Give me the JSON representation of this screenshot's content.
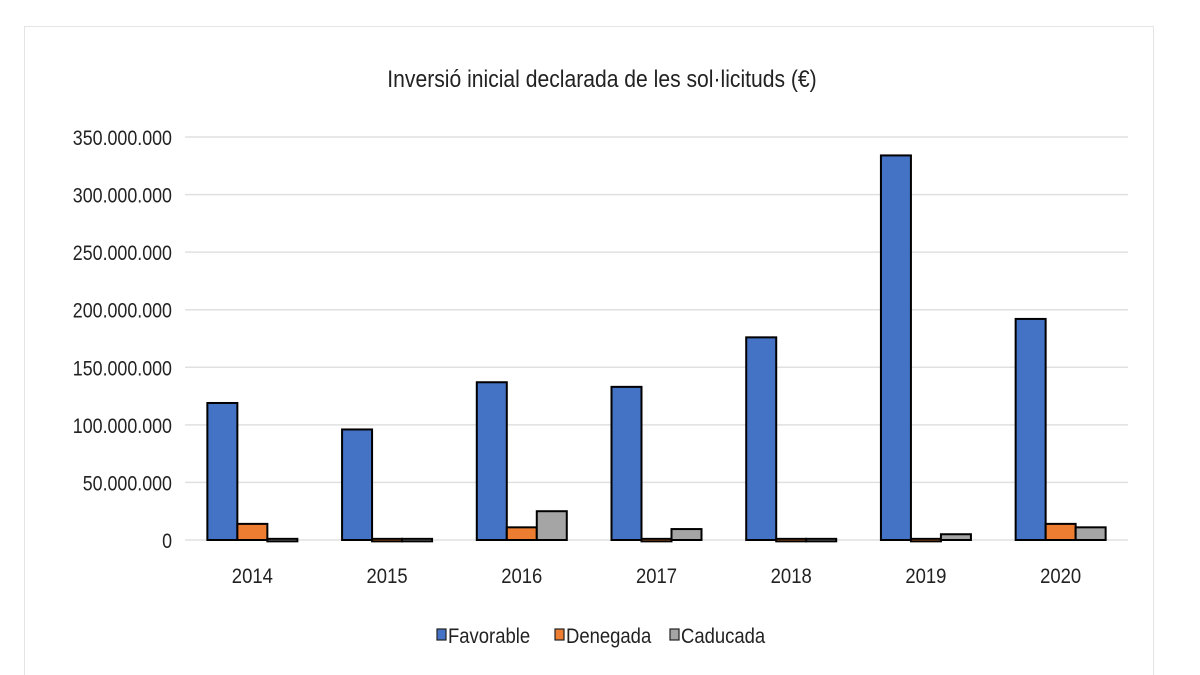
{
  "chart_data": {
    "type": "bar",
    "title": "Inversió  inicial declarada  de les sol·licituds (€)",
    "xlabel": "",
    "ylabel": "",
    "categories": [
      "2014",
      "2015",
      "2016",
      "2017",
      "2018",
      "2019",
      "2020"
    ],
    "series": [
      {
        "name": "Favorable",
        "color": "#4472c4",
        "values": [
          119000000,
          96000000,
          137000000,
          133000000,
          176000000,
          334000000,
          192000000
        ]
      },
      {
        "name": "Denegada",
        "color": "#ed7d31",
        "values": [
          14000000,
          1000000,
          11000000,
          1000000,
          1000000,
          1000000,
          14000000
        ]
      },
      {
        "name": "Caducada",
        "color": "#a5a5a5",
        "values": [
          1000000,
          1000000,
          25000000,
          9500000,
          1000000,
          5000000,
          11000000
        ]
      }
    ],
    "ylim": [
      0,
      350000000
    ],
    "yticks": [
      0,
      50000000,
      100000000,
      150000000,
      200000000,
      250000000,
      300000000,
      350000000
    ],
    "ytick_labels": [
      "0",
      "50.000.000",
      "100.000.000",
      "150.000.000",
      "200.000.000",
      "250.000.000",
      "300.000.000",
      "350.000.000"
    ],
    "grid": true,
    "legend_position": "bottom"
  }
}
